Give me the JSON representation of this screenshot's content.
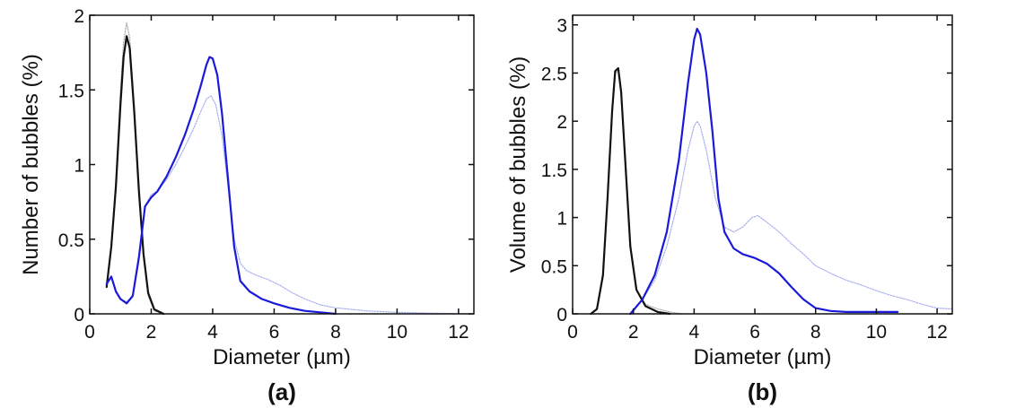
{
  "chart_data": [
    {
      "type": "line",
      "panel_label": "(a)",
      "xlabel": "Diameter (µm)",
      "ylabel": "Number of bubbles (%)",
      "xlim": [
        0,
        12.5
      ],
      "ylim": [
        0,
        2
      ],
      "xticks": [
        0,
        2,
        4,
        6,
        8,
        10,
        12
      ],
      "yticks": [
        0,
        0.5,
        1,
        1.5,
        2
      ],
      "ytick_labels": [
        "0",
        "0.5",
        "1",
        "1.5",
        "2"
      ],
      "grid": false,
      "series": [
        {
          "color": "#b0b0b0",
          "stroke_width": 1.2,
          "dashed": true,
          "points": [
            [
              0.55,
              0.18
            ],
            [
              0.7,
              0.45
            ],
            [
              0.85,
              0.9
            ],
            [
              1.0,
              1.5
            ],
            [
              1.1,
              1.82
            ],
            [
              1.2,
              1.95
            ],
            [
              1.3,
              1.85
            ],
            [
              1.45,
              1.4
            ],
            [
              1.6,
              0.85
            ],
            [
              1.75,
              0.4
            ],
            [
              1.9,
              0.12
            ],
            [
              2.1,
              0.02
            ],
            [
              2.4,
              0
            ]
          ]
        },
        {
          "color": "#111111",
          "stroke_width": 2.2,
          "dashed": false,
          "points": [
            [
              0.55,
              0.18
            ],
            [
              0.7,
              0.45
            ],
            [
              0.85,
              0.85
            ],
            [
              1.0,
              1.4
            ],
            [
              1.1,
              1.72
            ],
            [
              1.2,
              1.86
            ],
            [
              1.3,
              1.78
            ],
            [
              1.45,
              1.35
            ],
            [
              1.6,
              0.82
            ],
            [
              1.75,
              0.4
            ],
            [
              1.9,
              0.14
            ],
            [
              2.1,
              0.03
            ],
            [
              2.4,
              0
            ]
          ]
        },
        {
          "color": "#a6aef0",
          "stroke_width": 1.2,
          "dashed": true,
          "points": [
            [
              0.55,
              0.2
            ],
            [
              0.7,
              0.25
            ],
            [
              0.85,
              0.15
            ],
            [
              1.0,
              0.1
            ],
            [
              1.2,
              0.08
            ],
            [
              1.4,
              0.12
            ],
            [
              1.6,
              0.35
            ],
            [
              1.8,
              0.72
            ],
            [
              2.0,
              0.8
            ],
            [
              2.2,
              0.82
            ],
            [
              2.5,
              0.9
            ],
            [
              2.8,
              1.0
            ],
            [
              3.1,
              1.12
            ],
            [
              3.4,
              1.25
            ],
            [
              3.6,
              1.35
            ],
            [
              3.8,
              1.44
            ],
            [
              3.95,
              1.46
            ],
            [
              4.1,
              1.4
            ],
            [
              4.3,
              1.2
            ],
            [
              4.5,
              0.85
            ],
            [
              4.7,
              0.5
            ],
            [
              4.9,
              0.34
            ],
            [
              5.1,
              0.29
            ],
            [
              5.4,
              0.26
            ],
            [
              5.8,
              0.23
            ],
            [
              6.2,
              0.19
            ],
            [
              6.6,
              0.14
            ],
            [
              7.0,
              0.1
            ],
            [
              7.5,
              0.06
            ],
            [
              8.0,
              0.04
            ],
            [
              9.0,
              0.02
            ],
            [
              10.0,
              0.01
            ],
            [
              11.0,
              0.005
            ],
            [
              12.5,
              0
            ]
          ]
        },
        {
          "color": "#1a1ad8",
          "stroke_width": 2.2,
          "dashed": false,
          "points": [
            [
              0.55,
              0.2
            ],
            [
              0.7,
              0.25
            ],
            [
              0.85,
              0.15
            ],
            [
              1.0,
              0.1
            ],
            [
              1.2,
              0.07
            ],
            [
              1.4,
              0.12
            ],
            [
              1.6,
              0.38
            ],
            [
              1.8,
              0.72
            ],
            [
              2.0,
              0.78
            ],
            [
              2.2,
              0.82
            ],
            [
              2.5,
              0.92
            ],
            [
              2.8,
              1.05
            ],
            [
              3.1,
              1.2
            ],
            [
              3.4,
              1.38
            ],
            [
              3.6,
              1.52
            ],
            [
              3.8,
              1.67
            ],
            [
              3.9,
              1.72
            ],
            [
              4.0,
              1.71
            ],
            [
              4.15,
              1.6
            ],
            [
              4.3,
              1.35
            ],
            [
              4.5,
              0.9
            ],
            [
              4.7,
              0.45
            ],
            [
              4.9,
              0.22
            ],
            [
              5.2,
              0.15
            ],
            [
              5.6,
              0.1
            ],
            [
              6.0,
              0.07
            ],
            [
              6.5,
              0.04
            ],
            [
              7.0,
              0.02
            ],
            [
              7.5,
              0.01
            ],
            [
              8.0,
              0
            ]
          ]
        }
      ]
    },
    {
      "type": "line",
      "panel_label": "(b)",
      "xlabel": "Diameter (µm)",
      "ylabel": "Volume of bubbles (%)",
      "xlim": [
        0,
        12.5
      ],
      "ylim": [
        0,
        3.1
      ],
      "xticks": [
        0,
        2,
        4,
        6,
        8,
        10,
        12
      ],
      "yticks": [
        0,
        0.5,
        1,
        1.5,
        2,
        2.5,
        3
      ],
      "ytick_labels": [
        "0",
        "0.5",
        "1",
        "1.5",
        "2",
        "2.5",
        "3"
      ],
      "grid": false,
      "series": [
        {
          "color": "#b0b0b0",
          "stroke_width": 1.2,
          "dashed": true,
          "points": [
            [
              0.6,
              0
            ],
            [
              0.8,
              0.05
            ],
            [
              1.0,
              0.4
            ],
            [
              1.15,
              1.2
            ],
            [
              1.3,
              2.1
            ],
            [
              1.4,
              2.5
            ],
            [
              1.5,
              2.52
            ],
            [
              1.6,
              2.3
            ],
            [
              1.75,
              1.5
            ],
            [
              1.9,
              0.7
            ],
            [
              2.1,
              0.25
            ],
            [
              2.4,
              0.1
            ],
            [
              2.8,
              0.05
            ],
            [
              3.2,
              0.02
            ],
            [
              3.6,
              0
            ]
          ]
        },
        {
          "color": "#111111",
          "stroke_width": 2.2,
          "dashed": false,
          "points": [
            [
              0.6,
              0
            ],
            [
              0.8,
              0.05
            ],
            [
              1.0,
              0.4
            ],
            [
              1.15,
              1.2
            ],
            [
              1.3,
              2.1
            ],
            [
              1.4,
              2.52
            ],
            [
              1.5,
              2.55
            ],
            [
              1.6,
              2.3
            ],
            [
              1.75,
              1.5
            ],
            [
              1.9,
              0.7
            ],
            [
              2.1,
              0.25
            ],
            [
              2.4,
              0.08
            ],
            [
              2.8,
              0.02
            ],
            [
              3.2,
              0
            ]
          ]
        },
        {
          "color": "#a6aef0",
          "stroke_width": 1.2,
          "dashed": true,
          "points": [
            [
              1.9,
              0
            ],
            [
              2.3,
              0.15
            ],
            [
              2.7,
              0.35
            ],
            [
              3.1,
              0.7
            ],
            [
              3.5,
              1.2
            ],
            [
              3.8,
              1.7
            ],
            [
              4.0,
              1.95
            ],
            [
              4.1,
              2.0
            ],
            [
              4.2,
              1.95
            ],
            [
              4.4,
              1.7
            ],
            [
              4.7,
              1.2
            ],
            [
              5.0,
              0.9
            ],
            [
              5.3,
              0.85
            ],
            [
              5.6,
              0.9
            ],
            [
              5.9,
              1.0
            ],
            [
              6.1,
              1.02
            ],
            [
              6.4,
              0.95
            ],
            [
              6.8,
              0.85
            ],
            [
              7.2,
              0.73
            ],
            [
              7.6,
              0.62
            ],
            [
              8.0,
              0.5
            ],
            [
              8.5,
              0.42
            ],
            [
              9.0,
              0.35
            ],
            [
              9.5,
              0.3
            ],
            [
              10.0,
              0.24
            ],
            [
              10.5,
              0.19
            ],
            [
              11.0,
              0.15
            ],
            [
              11.5,
              0.1
            ],
            [
              12.0,
              0.06
            ],
            [
              12.5,
              0.05
            ]
          ]
        },
        {
          "color": "#1a1ad8",
          "stroke_width": 2.2,
          "dashed": false,
          "points": [
            [
              1.9,
              0
            ],
            [
              2.3,
              0.15
            ],
            [
              2.7,
              0.4
            ],
            [
              3.1,
              0.85
            ],
            [
              3.5,
              1.6
            ],
            [
              3.8,
              2.4
            ],
            [
              4.0,
              2.85
            ],
            [
              4.1,
              2.96
            ],
            [
              4.2,
              2.9
            ],
            [
              4.4,
              2.5
            ],
            [
              4.6,
              1.9
            ],
            [
              4.8,
              1.2
            ],
            [
              5.0,
              0.85
            ],
            [
              5.3,
              0.68
            ],
            [
              5.6,
              0.62
            ],
            [
              6.0,
              0.58
            ],
            [
              6.4,
              0.52
            ],
            [
              6.8,
              0.42
            ],
            [
              7.2,
              0.28
            ],
            [
              7.6,
              0.15
            ],
            [
              8.0,
              0.06
            ],
            [
              8.5,
              0.03
            ],
            [
              9.0,
              0.02
            ],
            [
              10.0,
              0.02
            ],
            [
              10.7,
              0.02
            ]
          ]
        }
      ]
    }
  ]
}
